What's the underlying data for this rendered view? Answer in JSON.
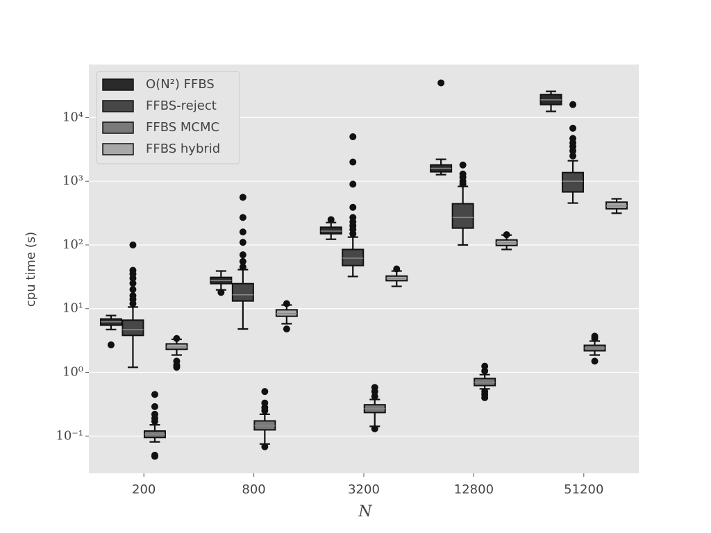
{
  "chart_data": {
    "type": "box",
    "x_label": "N",
    "y_label": "cpu time (s)",
    "categories": [
      "200",
      "800",
      "3200",
      "12800",
      "51200"
    ],
    "log_y": true,
    "grid": true,
    "legend": "upper left",
    "ylim": [
      0.026,
      68000
    ],
    "yticks": [
      {
        "value": 0.1,
        "label": "10⁻¹"
      },
      {
        "value": 1,
        "label": "10⁰"
      },
      {
        "value": 10,
        "label": "10¹"
      },
      {
        "value": 100,
        "label": "10²"
      },
      {
        "value": 1000,
        "label": "10³"
      },
      {
        "value": 10000,
        "label": "10⁴"
      }
    ],
    "series": [
      {
        "name": "O(N²) FFBS",
        "color": "#2a2a2a",
        "boxes": [
          {
            "whislo": 4.7,
            "q1": 5.5,
            "med": 6.2,
            "q3": 6.9,
            "whishi": 7.8,
            "fliers": [
              2.7
            ]
          },
          {
            "whislo": 19.7,
            "q1": 24.7,
            "med": 27.5,
            "q3": 31,
            "whishi": 39,
            "fliers": [
              18
            ]
          },
          {
            "whislo": 123,
            "q1": 150,
            "med": 165,
            "q3": 190,
            "whishi": 225,
            "fliers": [
              250
            ]
          },
          {
            "whislo": 1270,
            "q1": 1406,
            "med": 1600,
            "q3": 1808,
            "whishi": 2210,
            "fliers": [
              35000
            ]
          },
          {
            "whislo": 12500,
            "q1": 16000,
            "med": 19000,
            "q3": 23000,
            "whishi": 25800,
            "fliers": []
          }
        ]
      },
      {
        "name": "FFBS-reject",
        "color": "#474747",
        "boxes": [
          {
            "whislo": 1.2,
            "q1": 3.8,
            "med": 4.7,
            "q3": 6.6,
            "whishi": 10.6,
            "fliers": [
              12,
              14,
              16,
              20,
              25,
              30,
              35,
              40,
              100
            ]
          },
          {
            "whislo": 4.8,
            "q1": 13.2,
            "med": 16.5,
            "q3": 24.7,
            "whishi": 41,
            "fliers": [
              45,
              55,
              70,
              110,
              160,
              270,
              560
            ]
          },
          {
            "whislo": 32,
            "q1": 47.5,
            "med": 62,
            "q3": 85,
            "whishi": 133,
            "fliers": [
              150,
              175,
              200,
              230,
              270,
              390,
              900,
              2000,
              5000
            ]
          },
          {
            "whislo": 100,
            "q1": 184,
            "med": 270,
            "q3": 444,
            "whishi": 830,
            "fliers": [
              900,
              1000,
              1150,
              1300,
              1800
            ]
          },
          {
            "whislo": 455,
            "q1": 680,
            "med": 1000,
            "q3": 1370,
            "whishi": 2100,
            "fliers": [
              2500,
              3000,
              3500,
              4000,
              4700,
              6800,
              16000
            ]
          }
        ]
      },
      {
        "name": "FFBS MCMC",
        "color": "#7a7a7a",
        "boxes": [
          {
            "whislo": 0.081,
            "q1": 0.095,
            "med": 0.107,
            "q3": 0.12,
            "whishi": 0.15,
            "fliers": [
              0.17,
              0.19,
              0.22,
              0.29,
              0.45,
              0.048,
              0.05
            ]
          },
          {
            "whislo": 0.075,
            "q1": 0.125,
            "med": 0.145,
            "q3": 0.173,
            "whishi": 0.22,
            "fliers": [
              0.25,
              0.28,
              0.33,
              0.5,
              0.068
            ]
          },
          {
            "whislo": 0.142,
            "q1": 0.234,
            "med": 0.27,
            "q3": 0.31,
            "whishi": 0.375,
            "fliers": [
              0.42,
              0.5,
              0.58,
              0.13
            ]
          },
          {
            "whislo": 0.55,
            "q1": 0.62,
            "med": 0.7,
            "q3": 0.8,
            "whishi": 0.92,
            "fliers": [
              1.05,
              1.25,
              0.5,
              0.45,
              0.4
            ]
          },
          {
            "whislo": 1.87,
            "q1": 2.18,
            "med": 2.4,
            "q3": 2.66,
            "whishi": 3.1,
            "fliers": [
              3.4,
              3.7,
              1.5
            ]
          }
        ]
      },
      {
        "name": "FFBS hybrid",
        "color": "#a8a8a8",
        "boxes": [
          {
            "whislo": 1.87,
            "q1": 2.3,
            "med": 2.5,
            "q3": 2.8,
            "whishi": 3.3,
            "fliers": [
              3.4,
              1.2,
              1.3,
              1.5
            ]
          },
          {
            "whislo": 5.8,
            "q1": 7.6,
            "med": 8.4,
            "q3": 9.6,
            "whishi": 11.4,
            "fliers": [
              12,
              4.8
            ]
          },
          {
            "whislo": 22.4,
            "q1": 27.5,
            "med": 30,
            "q3": 32.5,
            "whishi": 39,
            "fliers": [
              42
            ]
          },
          {
            "whislo": 85,
            "q1": 98,
            "med": 108,
            "q3": 120,
            "whishi": 143,
            "fliers": [
              145
            ]
          },
          {
            "whislo": 315,
            "q1": 370,
            "med": 410,
            "q3": 470,
            "whishi": 530,
            "fliers": []
          }
        ]
      }
    ]
  }
}
